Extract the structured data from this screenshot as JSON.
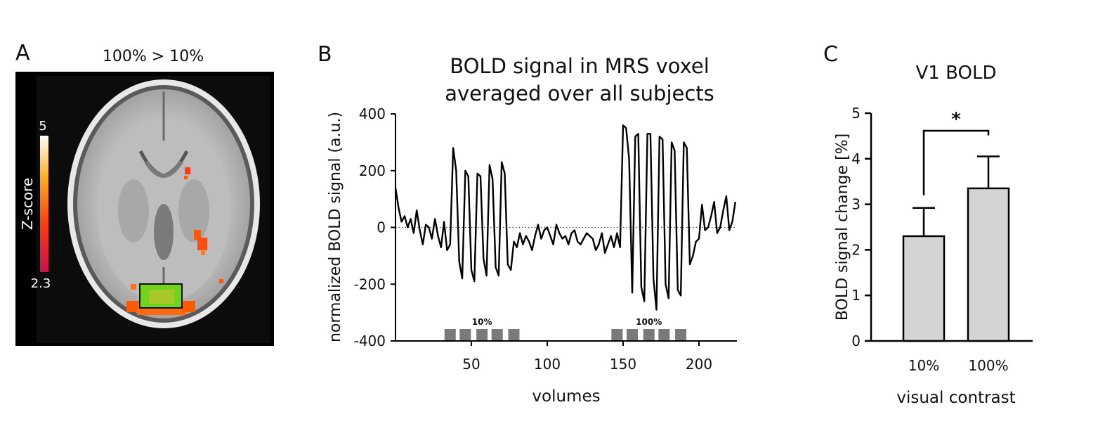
{
  "panels": {
    "a": {
      "letter": "A",
      "title": "100% > 10%",
      "colorbar": {
        "label": "Z-score",
        "max_label": "5",
        "min_label": "2.3",
        "max": 5,
        "min": 2.3
      }
    },
    "b": {
      "letter": "B"
    },
    "c": {
      "letter": "C"
    }
  },
  "colors": {
    "line": "#000000",
    "bar_fill": "#d4d4d4",
    "block_fill": "#7a7a7a",
    "roi_fill": "#6fd51c",
    "activation": "#ff5a00",
    "brain_bg": "#000000"
  },
  "chart_data": [
    {
      "type": "line",
      "title": "BOLD signal in MRS voxel averaged over all subjects",
      "title_lines": [
        "BOLD signal in MRS voxel",
        "averaged over all subjects"
      ],
      "xlabel": "volumes",
      "ylabel": "normalized BOLD signal (a.u.)",
      "xlim": [
        0,
        225
      ],
      "ylim": [
        -400,
        400
      ],
      "xticks": [
        50,
        100,
        150,
        200
      ],
      "yticks": [
        -400,
        -200,
        0,
        200,
        400
      ],
      "xtick_labels": [
        "50",
        "100",
        "150",
        "200"
      ],
      "ytick_labels": [
        "-400",
        "-200",
        "0",
        "200",
        "400"
      ],
      "zero_line": "dotted",
      "stimulus_blocks": [
        {
          "label": "10%",
          "x": [
            36,
            46,
            57,
            67,
            78
          ]
        },
        {
          "label": "100%",
          "x": [
            146,
            156,
            167,
            177,
            188
          ]
        }
      ],
      "series": [
        {
          "x": [
            0,
            2,
            4,
            6,
            8,
            10,
            12,
            14,
            16,
            18,
            20,
            22,
            24,
            26,
            28,
            30,
            32,
            34,
            36,
            38,
            40,
            42,
            44,
            46,
            48,
            50,
            52,
            54,
            56,
            58,
            60,
            62,
            64,
            66,
            68,
            70,
            72,
            74,
            76,
            78,
            80,
            82,
            84,
            86,
            88,
            90,
            92,
            94,
            96,
            98,
            100,
            102,
            104,
            106,
            108,
            110,
            112,
            114,
            116,
            118,
            120,
            122,
            124,
            126,
            128,
            130,
            132,
            134,
            136,
            138,
            140,
            142,
            144,
            146,
            148,
            150,
            152,
            154,
            156,
            158,
            160,
            162,
            164,
            166,
            168,
            170,
            172,
            174,
            176,
            178,
            180,
            182,
            184,
            186,
            188,
            190,
            192,
            194,
            196,
            198,
            200,
            202,
            204,
            206,
            208,
            210,
            212,
            214,
            216,
            218,
            220,
            222,
            224
          ],
          "y": [
            140,
            70,
            20,
            40,
            0,
            30,
            -20,
            60,
            -10,
            -60,
            10,
            0,
            -40,
            30,
            -30,
            -70,
            20,
            -80,
            -60,
            280,
            200,
            -120,
            -180,
            200,
            180,
            -150,
            -190,
            190,
            180,
            -110,
            -170,
            220,
            170,
            -140,
            -170,
            230,
            190,
            -130,
            -150,
            -50,
            -70,
            -20,
            -60,
            -30,
            -50,
            -80,
            -30,
            10,
            -40,
            -10,
            0,
            -30,
            -60,
            10,
            -20,
            -40,
            -30,
            -60,
            -20,
            -10,
            -50,
            -60,
            -40,
            -20,
            -30,
            -40,
            -80,
            -60,
            -20,
            -90,
            -60,
            -30,
            -70,
            -20,
            -70,
            360,
            350,
            240,
            -230,
            320,
            330,
            -210,
            -260,
            330,
            330,
            -180,
            -290,
            320,
            310,
            -200,
            -250,
            300,
            270,
            -220,
            -240,
            300,
            280,
            -130,
            -100,
            -50,
            -40,
            80,
            -10,
            0,
            40,
            90,
            -20,
            0,
            60,
            110,
            -10,
            20,
            90
          ],
          "value_note": "approximate, read off the plotted trace"
        }
      ]
    },
    {
      "type": "bar",
      "title": "V1 BOLD",
      "xlabel": "visual contrast",
      "ylabel": "BOLD signal change [%]",
      "categories": [
        "10%",
        "100%"
      ],
      "values": [
        2.3,
        3.35
      ],
      "error_upper": [
        2.92,
        4.05
      ],
      "ylim": [
        0,
        5
      ],
      "yticks": [
        0,
        1,
        2,
        3,
        4,
        5
      ],
      "ytick_labels": [
        "0",
        "1",
        "2",
        "3",
        "4",
        "5"
      ],
      "significance": {
        "label": "*",
        "between": [
          "10%",
          "100%"
        ]
      }
    }
  ]
}
